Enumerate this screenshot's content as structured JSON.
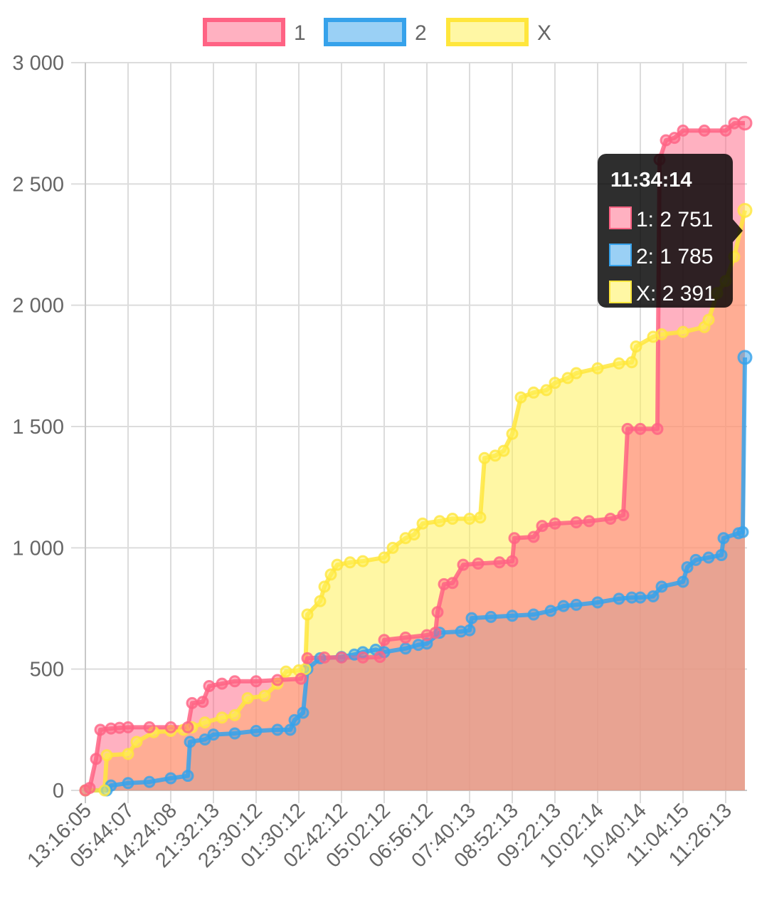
{
  "chart_data": {
    "type": "area",
    "x_ticks": [
      "13:16:05",
      "05:44:07",
      "14:24:08",
      "21:32:13",
      "23:30:12",
      "01:30:12",
      "02:42:12",
      "05:02:12",
      "06:56:12",
      "07:40:13",
      "08:52:13",
      "09:22:13",
      "10:02:14",
      "10:40:14",
      "11:04:15",
      "11:26:13"
    ],
    "y_ticks": [
      "0",
      "500",
      "1 000",
      "1 500",
      "2 000",
      "2 500",
      "3 000"
    ],
    "ylim": [
      0,
      3000
    ],
    "grid": true,
    "legend_position": "top",
    "series": [
      {
        "name": "1",
        "color": "#ff6384",
        "fill": "rgba(255,99,132,0.5)",
        "points": [
          [
            0,
            0
          ],
          [
            0.1,
            10
          ],
          [
            0.25,
            130
          ],
          [
            0.35,
            250
          ],
          [
            0.6,
            255
          ],
          [
            0.8,
            258
          ],
          [
            1.0,
            260
          ],
          [
            1.5,
            260
          ],
          [
            2.0,
            260
          ],
          [
            2.4,
            260
          ],
          [
            2.5,
            360
          ],
          [
            2.75,
            365
          ],
          [
            2.9,
            430
          ],
          [
            3.2,
            440
          ],
          [
            3.5,
            450
          ],
          [
            4.0,
            450
          ],
          [
            4.5,
            455
          ],
          [
            5.05,
            460
          ],
          [
            5.2,
            545
          ],
          [
            5.6,
            548
          ],
          [
            6.0,
            548
          ],
          [
            6.5,
            548
          ],
          [
            6.9,
            550
          ],
          [
            7.0,
            620
          ],
          [
            7.5,
            630
          ],
          [
            8.0,
            640
          ],
          [
            8.2,
            650
          ],
          [
            8.25,
            735
          ],
          [
            8.4,
            850
          ],
          [
            8.6,
            855
          ],
          [
            8.85,
            930
          ],
          [
            9.2,
            935
          ],
          [
            9.7,
            940
          ],
          [
            10.0,
            945
          ],
          [
            10.05,
            1040
          ],
          [
            10.5,
            1045
          ],
          [
            10.7,
            1090
          ],
          [
            11.0,
            1100
          ],
          [
            11.5,
            1105
          ],
          [
            11.8,
            1110
          ],
          [
            12.3,
            1120
          ],
          [
            12.6,
            1135
          ],
          [
            12.7,
            1490
          ],
          [
            13.0,
            1490
          ],
          [
            13.4,
            1490
          ],
          [
            13.45,
            2600
          ],
          [
            13.6,
            2680
          ],
          [
            13.8,
            2690
          ],
          [
            14.0,
            2720
          ],
          [
            14.5,
            2720
          ],
          [
            15.0,
            2720
          ],
          [
            15.2,
            2750
          ],
          [
            15.45,
            2751
          ]
        ]
      },
      {
        "name": "2",
        "color": "#36a2eb",
        "fill": "rgba(54,162,235,0.5)",
        "points": [
          [
            0,
            0
          ],
          [
            0.5,
            0
          ],
          [
            0.6,
            20
          ],
          [
            1.0,
            30
          ],
          [
            1.5,
            35
          ],
          [
            2.0,
            50
          ],
          [
            2.4,
            60
          ],
          [
            2.45,
            200
          ],
          [
            2.8,
            210
          ],
          [
            3.0,
            230
          ],
          [
            3.5,
            235
          ],
          [
            4.0,
            245
          ],
          [
            4.5,
            250
          ],
          [
            4.8,
            250
          ],
          [
            4.9,
            290
          ],
          [
            5.1,
            320
          ],
          [
            5.2,
            500
          ],
          [
            5.5,
            545
          ],
          [
            6.0,
            550
          ],
          [
            6.3,
            560
          ],
          [
            6.5,
            570
          ],
          [
            6.8,
            580
          ],
          [
            7.0,
            570
          ],
          [
            7.5,
            585
          ],
          [
            7.8,
            600
          ],
          [
            8.0,
            605
          ],
          [
            8.3,
            650
          ],
          [
            8.8,
            655
          ],
          [
            9.0,
            660
          ],
          [
            9.05,
            710
          ],
          [
            9.5,
            715
          ],
          [
            10.0,
            720
          ],
          [
            10.5,
            725
          ],
          [
            10.9,
            740
          ],
          [
            11.2,
            760
          ],
          [
            11.5,
            765
          ],
          [
            12.0,
            775
          ],
          [
            12.5,
            790
          ],
          [
            12.8,
            795
          ],
          [
            13.0,
            795
          ],
          [
            13.3,
            800
          ],
          [
            13.5,
            840
          ],
          [
            14.0,
            860
          ],
          [
            14.1,
            920
          ],
          [
            14.3,
            950
          ],
          [
            14.6,
            960
          ],
          [
            14.9,
            970
          ],
          [
            14.95,
            1040
          ],
          [
            15.3,
            1060
          ],
          [
            15.4,
            1065
          ],
          [
            15.45,
            1785
          ]
        ]
      },
      {
        "name": "X",
        "color": "#ffe63c",
        "fill": "rgba(255,240,90,0.55)",
        "points": [
          [
            0,
            0
          ],
          [
            0.45,
            0
          ],
          [
            0.5,
            145
          ],
          [
            1.0,
            150
          ],
          [
            1.2,
            200
          ],
          [
            1.6,
            240
          ],
          [
            2.0,
            245
          ],
          [
            2.3,
            250
          ],
          [
            2.5,
            260
          ],
          [
            2.8,
            280
          ],
          [
            3.2,
            300
          ],
          [
            3.5,
            310
          ],
          [
            3.8,
            380
          ],
          [
            4.2,
            390
          ],
          [
            4.5,
            440
          ],
          [
            4.7,
            490
          ],
          [
            5.0,
            495
          ],
          [
            5.15,
            500
          ],
          [
            5.2,
            725
          ],
          [
            5.5,
            780
          ],
          [
            5.6,
            840
          ],
          [
            5.75,
            890
          ],
          [
            5.9,
            930
          ],
          [
            6.2,
            940
          ],
          [
            6.5,
            945
          ],
          [
            7.0,
            960
          ],
          [
            7.2,
            1000
          ],
          [
            7.5,
            1040
          ],
          [
            7.7,
            1055
          ],
          [
            7.9,
            1100
          ],
          [
            8.3,
            1110
          ],
          [
            8.6,
            1120
          ],
          [
            9.0,
            1120
          ],
          [
            9.25,
            1125
          ],
          [
            9.35,
            1370
          ],
          [
            9.6,
            1380
          ],
          [
            9.8,
            1400
          ],
          [
            10.0,
            1470
          ],
          [
            10.2,
            1620
          ],
          [
            10.5,
            1640
          ],
          [
            10.8,
            1650
          ],
          [
            11.0,
            1680
          ],
          [
            11.3,
            1700
          ],
          [
            11.5,
            1720
          ],
          [
            12.0,
            1740
          ],
          [
            12.5,
            1760
          ],
          [
            12.8,
            1765
          ],
          [
            12.9,
            1830
          ],
          [
            13.3,
            1870
          ],
          [
            13.5,
            1880
          ],
          [
            14.0,
            1890
          ],
          [
            14.5,
            1910
          ],
          [
            14.6,
            1940
          ],
          [
            14.8,
            2050
          ],
          [
            15.0,
            2100
          ],
          [
            15.2,
            2200
          ],
          [
            15.45,
            2391
          ]
        ]
      }
    ],
    "tooltip": {
      "title": "11:34:14",
      "lines": [
        "1: 2 751",
        "2: 1 785",
        "X: 2 391"
      ]
    }
  }
}
